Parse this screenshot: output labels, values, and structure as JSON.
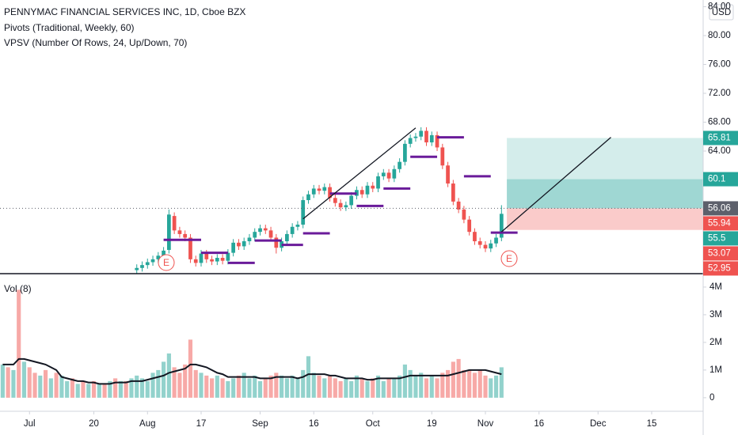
{
  "chart_data": {
    "type": "candlestick",
    "title": "PENNYMAC FINANCIAL SERVICES INC, 1D, Cboe BZX",
    "subtitles": [
      "Pivots (Traditional, Weekly, 60)",
      "VPSV (Number Of Rows, 24, Up/Down, 70)"
    ],
    "currency": "USD",
    "xlim": [
      -0.5,
      130.6
    ],
    "xticks": [
      {
        "value": 5,
        "label": "Jul"
      },
      {
        "value": 17,
        "label": "20"
      },
      {
        "value": 27,
        "label": "Aug"
      },
      {
        "value": 37,
        "label": "17"
      },
      {
        "value": 48,
        "label": "Sep"
      },
      {
        "value": 58,
        "label": "16"
      },
      {
        "value": 69,
        "label": "Oct"
      },
      {
        "value": 80,
        "label": "19"
      },
      {
        "value": 90,
        "label": "Nov"
      },
      {
        "value": 100,
        "label": "16"
      },
      {
        "value": 111,
        "label": "Dec"
      },
      {
        "value": 121,
        "label": "15"
      }
    ],
    "ylim": [
      47.01,
      84.93
    ],
    "yticks": [
      {
        "value": 64,
        "label": "64.00"
      },
      {
        "value": 68,
        "label": "68.00"
      },
      {
        "value": 72,
        "label": "72.00"
      },
      {
        "value": 76,
        "label": "76.00"
      },
      {
        "value": 80,
        "label": "80.00"
      },
      {
        "value": 84,
        "label": "84.00"
      }
    ],
    "up_color": "#26a69a",
    "down_color": "#ef5350",
    "open": [
      null,
      null,
      null,
      null,
      null,
      null,
      null,
      null,
      null,
      null,
      null,
      null,
      null,
      null,
      null,
      null,
      null,
      null,
      null,
      null,
      null,
      null,
      null,
      null,
      null,
      47.5,
      47.8,
      48.2,
      48.6,
      49.0,
      49.5,
      50.3,
      55.0,
      53.0,
      52.5,
      52.0,
      49.0,
      48.5,
      49.8,
      49.0,
      48.7,
      49.2,
      48.8,
      49.9,
      51.3,
      50.8,
      51.5,
      52.0,
      52.8,
      53.3,
      53.0,
      52.0,
      50.6,
      51.5,
      52.5,
      53.5,
      53.8,
      57.2,
      58.0,
      58.8,
      58.5,
      59.0,
      57.5,
      56.8,
      56.2,
      56.5,
      57.8,
      58.6,
      58.0,
      59.2,
      58.8,
      60.5,
      61.0,
      60.2,
      61.5,
      62.5,
      65.0,
      65.8,
      66.0,
      66.8,
      65.2,
      66.2,
      64.5,
      62.0,
      59.5,
      57.0,
      55.9,
      54.5,
      52.8,
      51.5,
      51.0,
      50.5,
      51.2,
      52.0
    ],
    "high": [
      null,
      null,
      null,
      null,
      null,
      null,
      null,
      null,
      null,
      null,
      null,
      null,
      null,
      null,
      null,
      null,
      null,
      null,
      null,
      null,
      null,
      null,
      null,
      null,
      null,
      48.3,
      48.7,
      49.1,
      49.5,
      50.0,
      50.7,
      55.9,
      55.5,
      53.5,
      53.0,
      52.5,
      49.5,
      50.3,
      50.3,
      49.5,
      49.7,
      49.7,
      50.4,
      51.8,
      51.8,
      52.0,
      52.5,
      53.3,
      53.8,
      53.8,
      53.5,
      52.5,
      52.0,
      53.0,
      54.0,
      54.3,
      57.7,
      58.5,
      59.3,
      59.3,
      59.5,
      59.5,
      58.0,
      57.3,
      57.0,
      58.3,
      59.1,
      59.1,
      59.7,
      59.7,
      61.0,
      61.5,
      61.5,
      62.0,
      63.0,
      65.5,
      66.3,
      66.5,
      67.3,
      67.3,
      66.7,
      66.7,
      65.0,
      62.5,
      60.0,
      57.5,
      56.4,
      55.0,
      53.3,
      52.0,
      51.5,
      51.7,
      52.5,
      56.5
    ],
    "low": [
      null,
      null,
      null,
      null,
      null,
      null,
      null,
      null,
      null,
      null,
      null,
      null,
      null,
      null,
      null,
      null,
      null,
      null,
      null,
      null,
      null,
      null,
      null,
      null,
      null,
      47.0,
      47.3,
      47.7,
      48.1,
      48.5,
      49.0,
      49.8,
      52.5,
      52.0,
      51.5,
      48.5,
      48.0,
      48.0,
      48.5,
      48.2,
      48.2,
      48.3,
      48.3,
      49.4,
      50.3,
      50.3,
      51.0,
      51.5,
      52.3,
      52.5,
      51.5,
      49.8,
      50.1,
      51.0,
      52.0,
      53.0,
      53.3,
      56.7,
      57.5,
      58.0,
      58.0,
      57.0,
      56.3,
      55.7,
      55.7,
      56.0,
      57.3,
      57.5,
      57.5,
      58.3,
      58.3,
      60.0,
      59.7,
      59.7,
      61.0,
      62.0,
      64.5,
      65.3,
      65.5,
      64.7,
      64.7,
      64.0,
      61.5,
      59.0,
      56.5,
      55.4,
      54.0,
      52.3,
      51.0,
      50.5,
      50.0,
      50.0,
      50.7,
      51.5
    ],
    "close": [
      null,
      null,
      null,
      null,
      null,
      null,
      null,
      null,
      null,
      null,
      null,
      null,
      null,
      null,
      null,
      null,
      null,
      null,
      null,
      null,
      null,
      null,
      null,
      null,
      null,
      47.8,
      48.2,
      48.6,
      49.0,
      49.5,
      50.2,
      55.2,
      53.0,
      52.5,
      52.0,
      49.0,
      48.5,
      49.8,
      49.0,
      48.7,
      49.2,
      48.8,
      49.9,
      51.3,
      50.8,
      51.5,
      52.0,
      52.8,
      53.3,
      53.0,
      52.0,
      50.6,
      51.5,
      52.5,
      53.5,
      53.8,
      57.2,
      58.0,
      58.8,
      58.5,
      59.0,
      57.5,
      56.8,
      56.2,
      56.5,
      57.8,
      58.6,
      58.0,
      59.2,
      58.8,
      60.5,
      61.0,
      60.2,
      61.5,
      62.5,
      65.0,
      65.8,
      66.0,
      66.8,
      65.2,
      66.2,
      64.5,
      62.0,
      59.5,
      57.0,
      55.9,
      54.5,
      52.8,
      51.5,
      51.0,
      50.5,
      51.2,
      52.0,
      55.3
    ],
    "pivots": {
      "color": "#6a1b9a",
      "levels": [
        {
          "from": 30,
          "to": 37,
          "value": 51.7
        },
        {
          "from": 37,
          "to": 42,
          "value": 49.9
        },
        {
          "from": 42,
          "to": 47,
          "value": 48.5
        },
        {
          "from": 47,
          "to": 52,
          "value": 51.6
        },
        {
          "from": 52,
          "to": 56,
          "value": 51.0
        },
        {
          "from": 56,
          "to": 61,
          "value": 52.6
        },
        {
          "from": 61,
          "to": 66,
          "value": 58.1
        },
        {
          "from": 66,
          "to": 71,
          "value": 56.4
        },
        {
          "from": 71,
          "to": 76,
          "value": 58.8
        },
        {
          "from": 76,
          "to": 81,
          "value": 63.2
        },
        {
          "from": 81,
          "to": 86,
          "value": 65.9
        },
        {
          "from": 86,
          "to": 91,
          "value": 60.5
        },
        {
          "from": 91,
          "to": 96,
          "value": 52.7
        }
      ]
    },
    "trendlines": [
      {
        "x": [
          56,
          77
        ],
        "y": [
          54.6,
          67.2
        ],
        "color": "#131722"
      },
      {
        "x": [
          93,
          113.4
        ],
        "y": [
          52.8,
          65.9
        ],
        "color": "#131722"
      }
    ],
    "zones": [
      {
        "from": 94,
        "to": 130.6,
        "low": 56.06,
        "high": 65.81,
        "color": "rgba(38,166,154,0.2)"
      },
      {
        "from": 94,
        "to": 130.6,
        "low": 56.06,
        "high": 60.1,
        "color": "rgba(38,166,154,0.3)"
      },
      {
        "from": 94,
        "to": 130.6,
        "low": 53.07,
        "high": 56.06,
        "color": "rgba(239,83,80,0.3)"
      }
    ],
    "price_labels": [
      {
        "value": 65.81,
        "color": "#26a69a"
      },
      {
        "value": 60.1,
        "color": "#26a69a"
      },
      {
        "value": 56.06,
        "color": "#5d606b",
        "dotted": true
      },
      {
        "value": 55.94,
        "color": "#ef5350"
      },
      {
        "value": 55.5,
        "color": "#26a69a"
      },
      {
        "value": 53.07,
        "color": "#ef5350"
      },
      {
        "value": 52.95,
        "color": "#ef5350"
      }
    ],
    "volume": {
      "title": "Vol (8)",
      "ylim": [
        -490000,
        4370000
      ],
      "yticks": [
        {
          "value": 0,
          "label": "0"
        },
        {
          "value": 1000000,
          "label": "1M"
        },
        {
          "value": 2000000,
          "label": "2M"
        },
        {
          "value": 3000000,
          "label": "3M"
        },
        {
          "value": 4000000,
          "label": "4M"
        }
      ],
      "values": [
        1200000,
        1100000,
        1000000,
        3900000,
        1300000,
        1100000,
        900000,
        800000,
        1000000,
        700000,
        900000,
        800000,
        600000,
        700000,
        500000,
        600000,
        500000,
        600000,
        500000,
        500000,
        600000,
        700000,
        600000,
        600000,
        700000,
        800000,
        700000,
        600000,
        900000,
        1000000,
        1300000,
        1600000,
        1100000,
        900000,
        1200000,
        2100000,
        1000000,
        900000,
        800000,
        700000,
        800000,
        700000,
        600000,
        700000,
        800000,
        900000,
        700000,
        800000,
        600000,
        700000,
        800000,
        900000,
        800000,
        700000,
        800000,
        700000,
        1000000,
        1500000,
        900000,
        800000,
        700000,
        800000,
        700000,
        600000,
        700000,
        600000,
        800000,
        700000,
        600000,
        700000,
        800000,
        600000,
        700000,
        700000,
        800000,
        1200000,
        1000000,
        800000,
        900000,
        700000,
        800000,
        700000,
        900000,
        1000000,
        1300000,
        1400000,
        1000000,
        1000000,
        900000,
        1000000,
        800000,
        700000,
        800000,
        1100000
      ],
      "colors": [
        "#92d2cc",
        "#f7a9a7",
        "#92d2cc",
        "#f7a9a7",
        "#92d2cc",
        "#f7a9a7",
        "#f7a9a7",
        "#92d2cc",
        "#f7a9a7",
        "#92d2cc",
        "#f7a9a7",
        "#92d2cc",
        "#92d2cc",
        "#f7a9a7",
        "#92d2cc",
        "#f7a9a7",
        "#92d2cc",
        "#f7a9a7",
        "#92d2cc",
        "#f7a9a7",
        "#92d2cc",
        "#f7a9a7",
        "#92d2cc",
        "#f7a9a7",
        "#92d2cc",
        "#92d2cc",
        "#92d2cc",
        "#92d2cc",
        "#92d2cc",
        "#92d2cc",
        "#92d2cc",
        "#92d2cc",
        "#f7a9a7",
        "#f7a9a7",
        "#f7a9a7",
        "#f7a9a7",
        "#f7a9a7",
        "#92d2cc",
        "#f7a9a7",
        "#f7a9a7",
        "#92d2cc",
        "#f7a9a7",
        "#92d2cc",
        "#92d2cc",
        "#f7a9a7",
        "#92d2cc",
        "#92d2cc",
        "#92d2cc",
        "#92d2cc",
        "#f7a9a7",
        "#f7a9a7",
        "#f7a9a7",
        "#92d2cc",
        "#92d2cc",
        "#92d2cc",
        "#92d2cc",
        "#92d2cc",
        "#92d2cc",
        "#92d2cc",
        "#f7a9a7",
        "#92d2cc",
        "#f7a9a7",
        "#f7a9a7",
        "#f7a9a7",
        "#92d2cc",
        "#92d2cc",
        "#92d2cc",
        "#f7a9a7",
        "#92d2cc",
        "#f7a9a7",
        "#92d2cc",
        "#92d2cc",
        "#f7a9a7",
        "#92d2cc",
        "#92d2cc",
        "#92d2cc",
        "#92d2cc",
        "#92d2cc",
        "#92d2cc",
        "#f7a9a7",
        "#92d2cc",
        "#f7a9a7",
        "#f7a9a7",
        "#f7a9a7",
        "#f7a9a7",
        "#f7a9a7",
        "#f7a9a7",
        "#f7a9a7",
        "#f7a9a7",
        "#f7a9a7",
        "#f7a9a7",
        "#92d2cc",
        "#92d2cc",
        "#92d2cc"
      ],
      "ma": [
        1200000,
        1200000,
        1200000,
        1400000,
        1400000,
        1350000,
        1300000,
        1250000,
        1200000,
        1100000,
        1000000,
        750000,
        700000,
        650000,
        600000,
        600000,
        550000,
        550000,
        500000,
        500000,
        500000,
        550000,
        550000,
        550000,
        600000,
        600000,
        600000,
        650000,
        700000,
        750000,
        800000,
        900000,
        950000,
        1000000,
        1050000,
        1200000,
        1200000,
        1150000,
        1100000,
        1000000,
        900000,
        850000,
        750000,
        750000,
        750000,
        750000,
        750000,
        750000,
        700000,
        700000,
        700000,
        750000,
        750000,
        750000,
        750000,
        700000,
        750000,
        850000,
        850000,
        850000,
        850000,
        800000,
        800000,
        750000,
        700000,
        700000,
        700000,
        700000,
        650000,
        650000,
        700000,
        700000,
        700000,
        700000,
        700000,
        750000,
        800000,
        800000,
        800000,
        800000,
        800000,
        800000,
        800000,
        800000,
        850000,
        900000,
        950000,
        1000000,
        1000000,
        1000000,
        1000000,
        950000,
        900000,
        850000
      ],
      "ma_color": "#131722"
    }
  }
}
